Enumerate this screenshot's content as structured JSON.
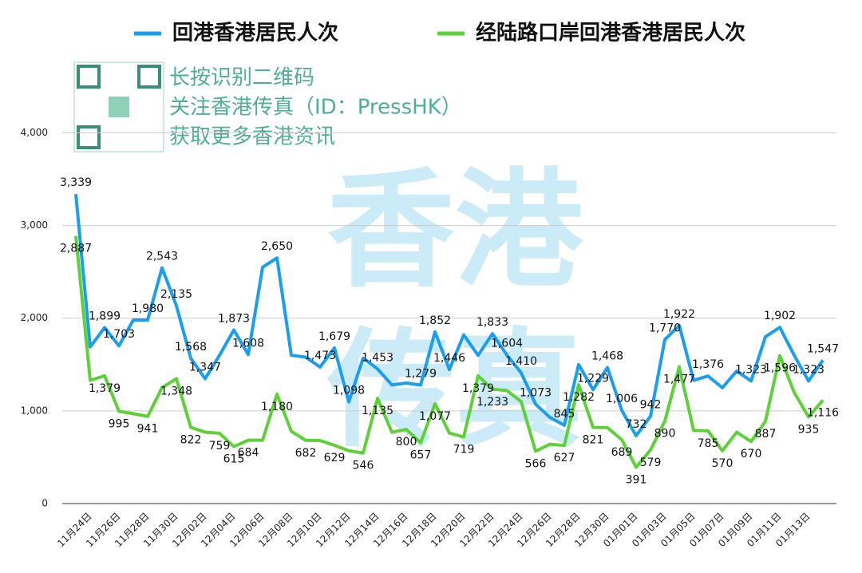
{
  "chart_data": {
    "type": "line",
    "categories": [
      null,
      "11月24日",
      null,
      "11月26日",
      null,
      "11月28日",
      null,
      "11月30日",
      null,
      "12月02日",
      null,
      "12月04日",
      null,
      "12月06日",
      null,
      "12月08日",
      null,
      "12月10日",
      null,
      "12月12日",
      null,
      "12月14日",
      null,
      "12月16日",
      null,
      "12月18日",
      null,
      "12月20日",
      null,
      "12月22日",
      null,
      "12月24日",
      null,
      "12月26日",
      null,
      "12月28日",
      null,
      "12月30日",
      null,
      "01月01日",
      null,
      "01月03日",
      null,
      "01月05日",
      null,
      "01月07日",
      null,
      "01月09日",
      null,
      "01月11日",
      null,
      "01月13日",
      null
    ],
    "series": [
      {
        "name": "回港香港居民人次",
        "color": "#1a9ff0",
        "values": [
          3339,
          1690,
          1899,
          1703,
          1980,
          1980,
          2543,
          2135,
          1568,
          1347,
          1600,
          1873,
          1608,
          2550,
          2650,
          1600,
          1580,
          1473,
          1679,
          1098,
          1570,
          1453,
          1280,
          1300,
          1279,
          1852,
          1446,
          1820,
          1600,
          1833,
          1604,
          1410,
          1073,
          930,
          845,
          1500,
          1229,
          1468,
          1006,
          732,
          942,
          1770,
          1922,
          1330,
          1376,
          1250,
          1430,
          1323,
          1800,
          1902,
          1600,
          1323,
          1547
        ],
        "value_labels": [
          "3,339",
          null,
          "1,899",
          "1,703",
          null,
          "1,980",
          "2,543",
          "2,135",
          "1,568",
          "1,347",
          null,
          "1,873",
          "1,608",
          null,
          "2,650",
          null,
          null,
          "1,473",
          "1,679",
          "1,098",
          null,
          "1,453",
          null,
          null,
          "1,279",
          "1,852",
          "1,446",
          null,
          null,
          "1,833",
          "1,604",
          "1,410",
          "1,073",
          null,
          "845",
          null,
          "1,229",
          "1,468",
          "1,006",
          "732",
          "942",
          "1,770",
          "1,922",
          null,
          "1,376",
          null,
          null,
          "1,323",
          null,
          "1,902",
          null,
          "1,323",
          "1,547"
        ]
      },
      {
        "name": "经陆路口岸回港香港居民人次",
        "color": "#5ed13a",
        "values": [
          2887,
          1330,
          1379,
          995,
          970,
          941,
          1250,
          1348,
          822,
          770,
          759,
          615,
          684,
          684,
          1180,
          780,
          682,
          680,
          629,
          570,
          546,
          1135,
          770,
          800,
          657,
          1077,
          760,
          719,
          1379,
          1233,
          1220,
          1100,
          566,
          640,
          627,
          1282,
          821,
          820,
          689,
          391,
          579,
          890,
          1477,
          790,
          785,
          570,
          770,
          670,
          887,
          1596,
          1200,
          935,
          1116
        ],
        "value_labels": [
          "2,887",
          null,
          "1,379",
          "995",
          null,
          "941",
          null,
          "1,348",
          "822",
          null,
          "759",
          "615",
          "684",
          null,
          "1,180",
          null,
          "682",
          null,
          "629",
          null,
          "546",
          "1,135",
          null,
          "800",
          "657",
          "1,077",
          null,
          "719",
          "1,379",
          "1,233",
          null,
          null,
          "566",
          null,
          "627",
          "1,282",
          "821",
          null,
          "689",
          "391",
          "579",
          "890",
          "1,477",
          null,
          "785",
          "570",
          null,
          "670",
          "887",
          "1,596",
          null,
          "935",
          "1,116"
        ]
      }
    ],
    "ylim": [
      0,
      4400
    ],
    "yticks": [
      0,
      {
        "value": 1000,
        "label": "1,000"
      },
      {
        "value": 2000,
        "label": "2,000"
      },
      {
        "value": 3000,
        "label": "3,000"
      },
      {
        "value": 4000,
        "label": "4,000"
      }
    ],
    "grid": true,
    "legend": "top",
    "annotations": [
      "长按识别二维码",
      "关注香港传真（ID：PressHK）",
      "获取更多香港资讯"
    ],
    "watermark": [
      "香港",
      "传真"
    ]
  }
}
